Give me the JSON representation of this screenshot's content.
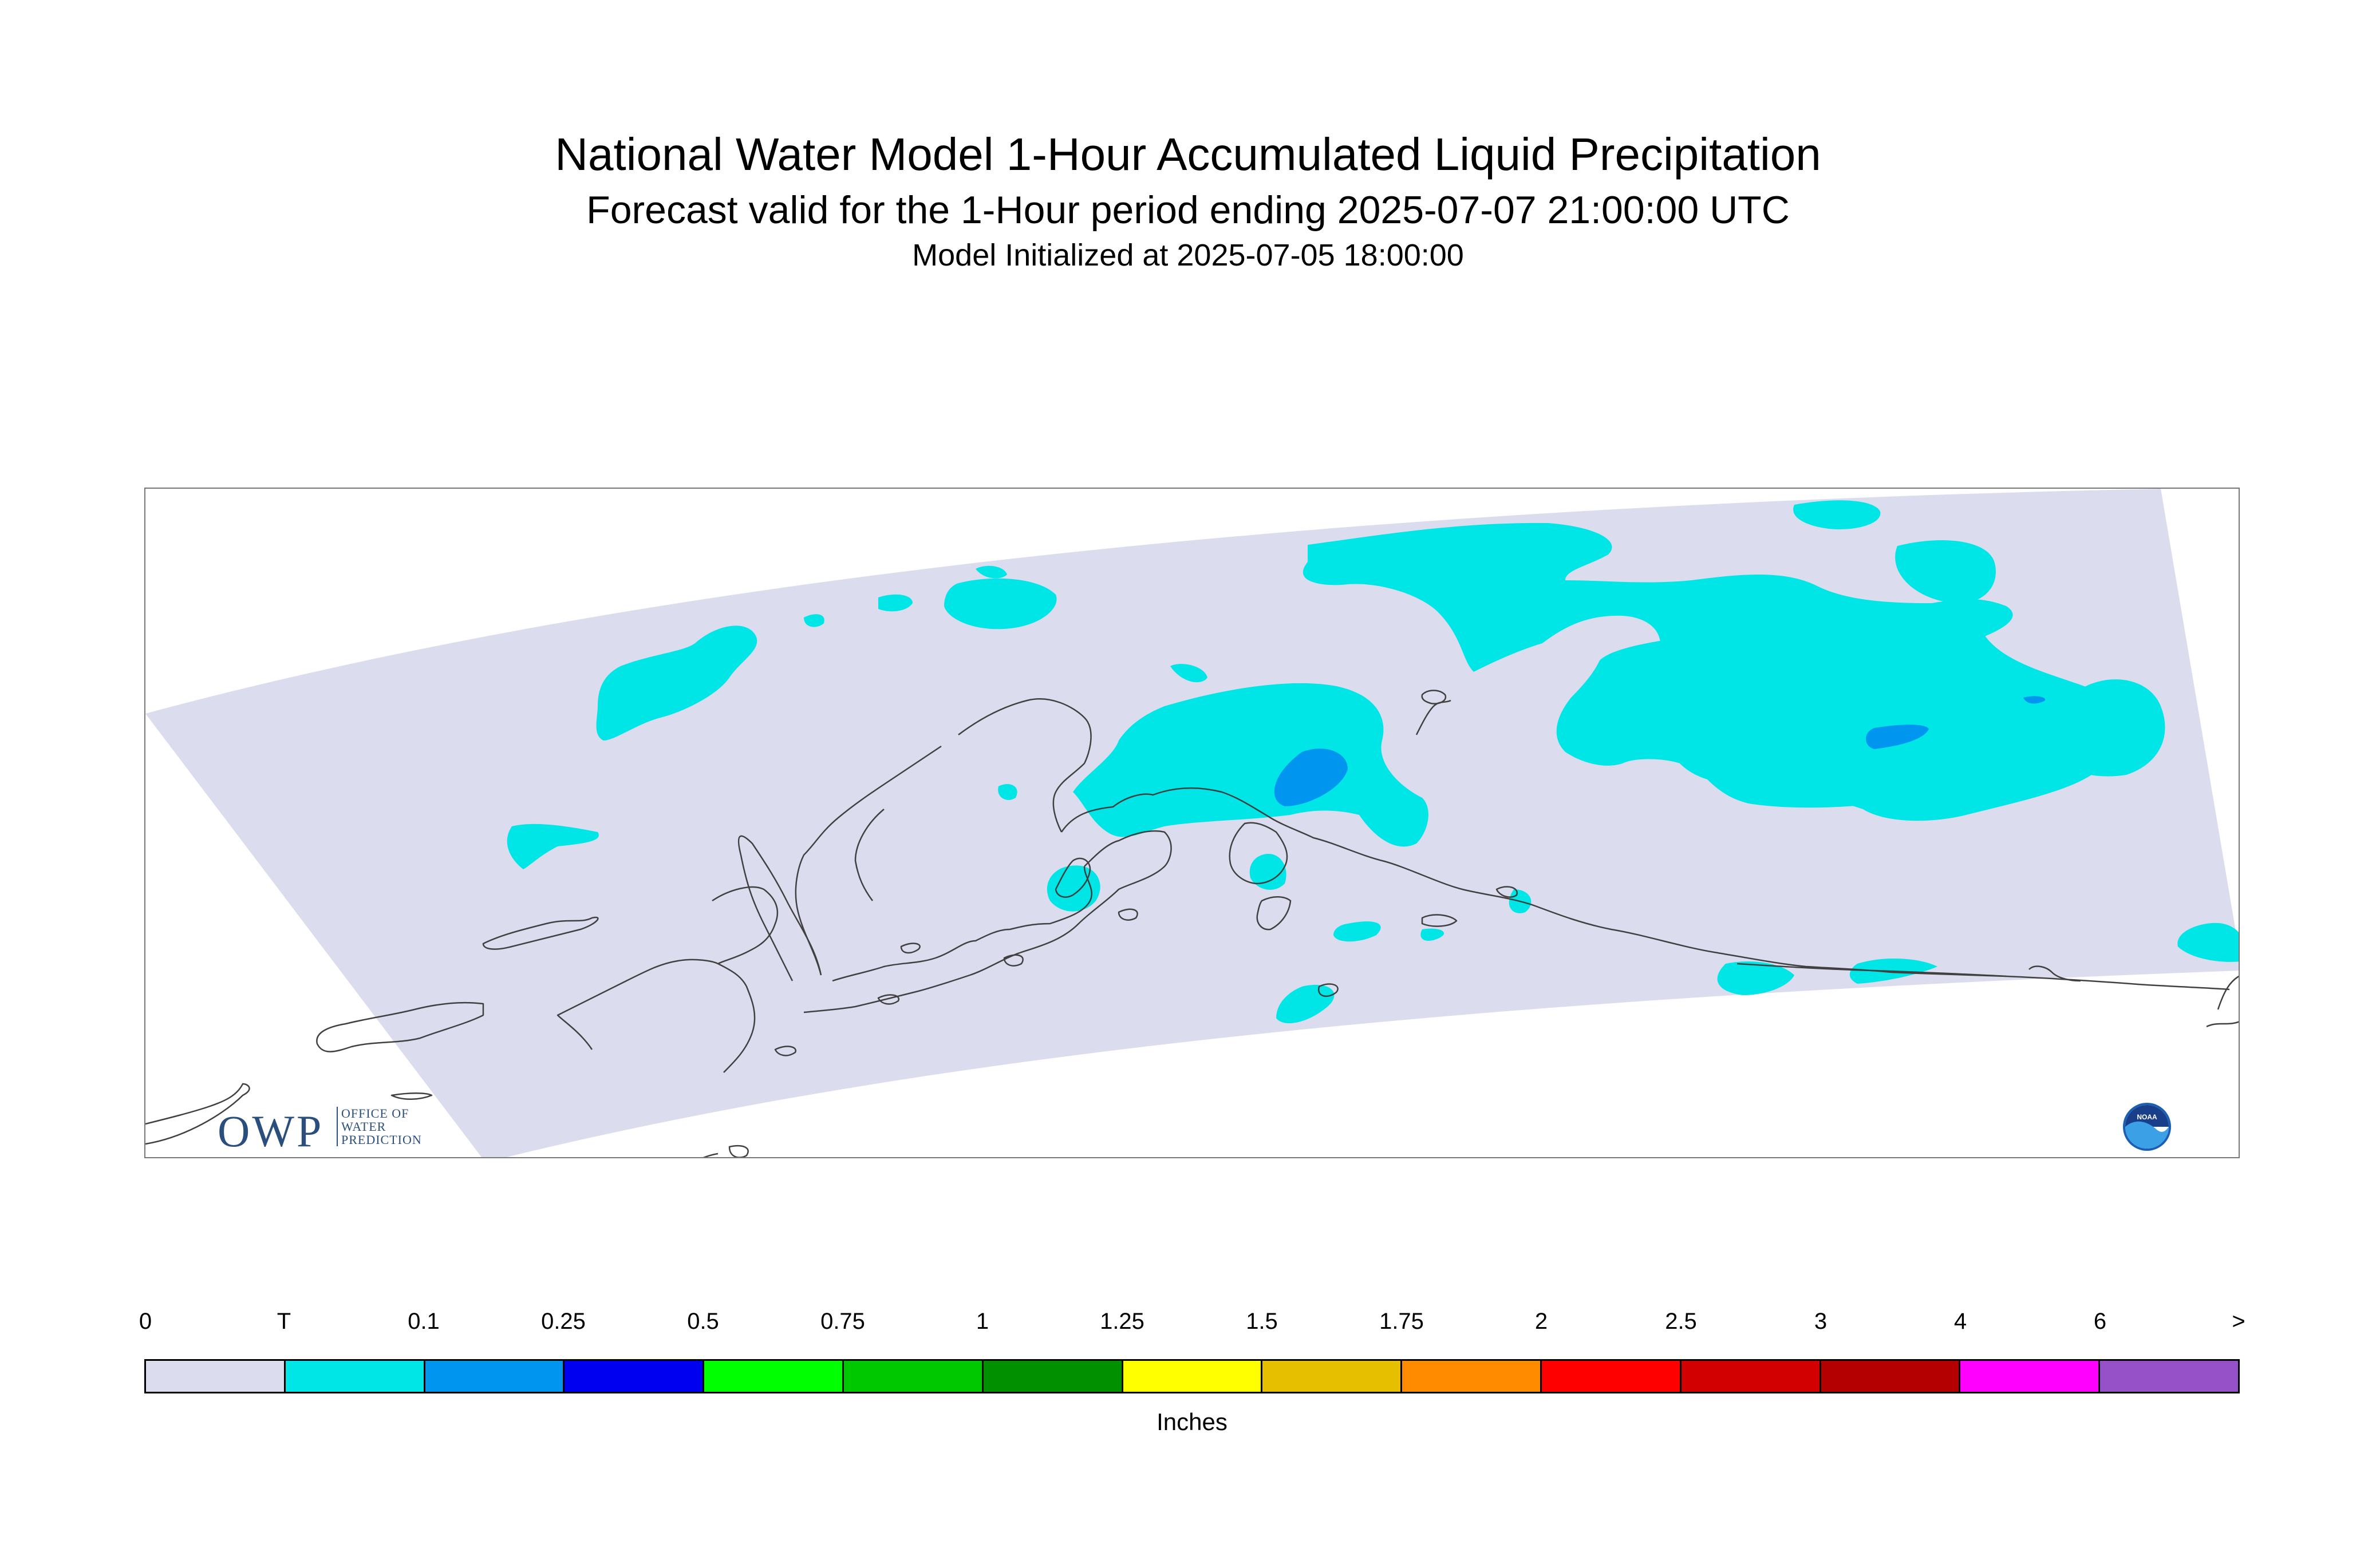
{
  "title": "National Water Model 1-Hour Accumulated Liquid Precipitation",
  "subtitle": "Forecast valid for the 1-Hour period ending 2025-07-07 21:00:00 UTC",
  "init_line": "Model Initialized at 2025-07-05 18:00:00",
  "colors": {
    "domain": "#dcdcef",
    "trace": "#00e6e6",
    "light": "#0096f0",
    "coast": "#404040",
    "frame": "#777777"
  },
  "logos": {
    "owp_main": "OWP",
    "owp_sub": [
      "OFFICE OF",
      "WATER",
      "PREDICTION"
    ],
    "noaa": "NOAA"
  },
  "legend": {
    "units": "Inches",
    "ticks": [
      "0",
      "T",
      "0.1",
      "0.25",
      "0.5",
      "0.75",
      "1",
      "1.25",
      "1.5",
      "1.75",
      "2",
      "2.5",
      "3",
      "4",
      "6",
      ">"
    ],
    "colors": [
      "#dcdcef",
      "#00e6e6",
      "#0096f0",
      "#0000f0",
      "#00ff00",
      "#00c800",
      "#009000",
      "#ffff00",
      "#e6c000",
      "#ff8c00",
      "#ff0000",
      "#d20000",
      "#b40000",
      "#ff00ff",
      "#9650c8"
    ]
  }
}
